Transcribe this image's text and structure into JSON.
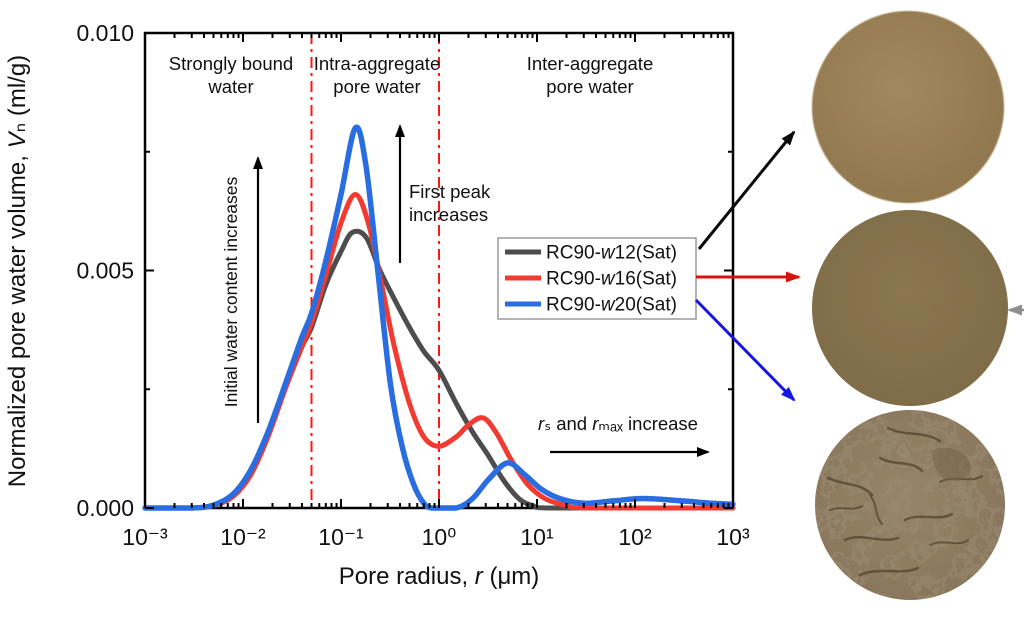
{
  "figure": {
    "background": "#ffffff"
  },
  "chart_data": {
    "type": "line",
    "title": "",
    "xlabel": "Pore radius, r (μm)",
    "ylabel": "Normalized pore water volume, Vₙ (ml/g)",
    "xlabel_parts": [
      {
        "t": "Pore radius, ",
        "i": false
      },
      {
        "t": "r",
        "i": true
      },
      {
        "t": " (μm)",
        "i": false
      }
    ],
    "ylabel_parts": [
      {
        "t": "Normalized pore water volume, ",
        "i": false
      },
      {
        "t": "V",
        "i": true
      },
      {
        "t": "ₙ",
        "i": false
      },
      {
        "t": " (ml/g)",
        "i": false
      }
    ],
    "x_scale": "log",
    "xlim": [
      0.001,
      1000
    ],
    "ylim": [
      0,
      0.01
    ],
    "x_tick_labels": [
      "10⁻³",
      "10⁻²",
      "10⁻¹",
      "10⁰",
      "10¹",
      "10²",
      "10³"
    ],
    "y_ticks": [
      0,
      0.005,
      0.01
    ],
    "y_tick_labels": [
      "0.000",
      "0.005",
      "0.010"
    ],
    "y_minor_ticks": [
      0.0025,
      0.0075
    ],
    "grid": false,
    "legend_position": "inside-right",
    "ink": "#000000",
    "boundary_color": "#ff1512",
    "region_boundaries_um": [
      0.05,
      1
    ],
    "series": [
      {
        "name": "RC90-w12(Sat)",
        "color": "#4d4d4d",
        "stroke_width": 5,
        "points": [
          [
            0.001,
            0
          ],
          [
            0.003,
            0
          ],
          [
            0.005,
            6e-05
          ],
          [
            0.008,
            0.0003
          ],
          [
            0.012,
            0.0008
          ],
          [
            0.018,
            0.0016
          ],
          [
            0.028,
            0.0026
          ],
          [
            0.04,
            0.0034
          ],
          [
            0.05,
            0.0038
          ],
          [
            0.07,
            0.0047
          ],
          [
            0.1,
            0.0054
          ],
          [
            0.13,
            0.0058
          ],
          [
            0.18,
            0.0057
          ],
          [
            0.25,
            0.005
          ],
          [
            0.35,
            0.0044
          ],
          [
            0.5,
            0.0038
          ],
          [
            0.7,
            0.0033
          ],
          [
            1,
            0.0029
          ],
          [
            1.5,
            0.0022
          ],
          [
            2.2,
            0.0016
          ],
          [
            3.2,
            0.0011
          ],
          [
            4.5,
            0.0006
          ],
          [
            6.5,
            0.0002
          ],
          [
            9,
            5e-05
          ],
          [
            13,
            0
          ],
          [
            100,
            0
          ],
          [
            1000,
            0
          ]
        ]
      },
      {
        "name": "RC90-w16(Sat)",
        "color": "#f23a30",
        "stroke_width": 5,
        "points": [
          [
            0.001,
            0
          ],
          [
            0.003,
            0
          ],
          [
            0.005,
            5e-05
          ],
          [
            0.008,
            0.00025
          ],
          [
            0.012,
            0.0007
          ],
          [
            0.018,
            0.0015
          ],
          [
            0.028,
            0.0026
          ],
          [
            0.04,
            0.0034
          ],
          [
            0.05,
            0.0039
          ],
          [
            0.07,
            0.0049
          ],
          [
            0.1,
            0.006
          ],
          [
            0.14,
            0.0066
          ],
          [
            0.19,
            0.006
          ],
          [
            0.26,
            0.0047
          ],
          [
            0.35,
            0.0034
          ],
          [
            0.5,
            0.0022
          ],
          [
            0.7,
            0.0015
          ],
          [
            1,
            0.0013
          ],
          [
            1.5,
            0.0015
          ],
          [
            2,
            0.00175
          ],
          [
            2.8,
            0.0019
          ],
          [
            3.8,
            0.0016
          ],
          [
            5.5,
            0.001
          ],
          [
            8,
            0.0005
          ],
          [
            12,
            0.0002
          ],
          [
            20,
            5e-05
          ],
          [
            35,
            0
          ],
          [
            1000,
            0
          ]
        ]
      },
      {
        "name": "RC90-w20(Sat)",
        "color": "#2a6de0",
        "stroke_width": 5.5,
        "points": [
          [
            0.001,
            0
          ],
          [
            0.003,
            0
          ],
          [
            0.005,
            6e-05
          ],
          [
            0.008,
            0.0003
          ],
          [
            0.012,
            0.0008
          ],
          [
            0.018,
            0.0016
          ],
          [
            0.028,
            0.0027
          ],
          [
            0.04,
            0.0036
          ],
          [
            0.05,
            0.0041
          ],
          [
            0.07,
            0.0052
          ],
          [
            0.1,
            0.0066
          ],
          [
            0.14,
            0.008
          ],
          [
            0.18,
            0.0072
          ],
          [
            0.24,
            0.0049
          ],
          [
            0.32,
            0.0026
          ],
          [
            0.42,
            0.0013
          ],
          [
            0.55,
            0.0005
          ],
          [
            0.7,
            0.0001
          ],
          [
            0.85,
            0
          ],
          [
            1.5,
            0
          ],
          [
            2.2,
            0.0002
          ],
          [
            3.2,
            0.0006
          ],
          [
            5,
            0.00095
          ],
          [
            7.5,
            0.0007
          ],
          [
            11,
            0.0004
          ],
          [
            17,
            0.0002
          ],
          [
            30,
            0.0001
          ],
          [
            60,
            0.00015
          ],
          [
            120,
            0.0002
          ],
          [
            300,
            0.00015
          ],
          [
            600,
            0.0001
          ],
          [
            1000,
            8e-05
          ]
        ]
      }
    ],
    "annotations": {
      "strongly_bound": {
        "line1": "Strongly bound",
        "line2": "water"
      },
      "intra_aggregate": {
        "line1": "Intra-aggregate",
        "line2": "pore water"
      },
      "inter_aggregate": {
        "line1": "Inter-aggregate",
        "line2": "pore water"
      },
      "initial_water": "Initial water content increases",
      "first_peak": {
        "line1": "First peak",
        "line2": "increases"
      },
      "rs_rmax": "rₛ and rₘₐₓ increase",
      "rs_rmax_parts": [
        {
          "t": "r",
          "i": true
        },
        {
          "t": "ₛ",
          "i": false
        },
        {
          "t": " and ",
          "i": false
        },
        {
          "t": "r",
          "i": true
        },
        {
          "t": "ₘₐₓ",
          "i": false
        },
        {
          "t": " increase",
          "i": false
        }
      ]
    }
  },
  "legend": {
    "entries": [
      {
        "text": "RC90-w12(Sat)",
        "parts": [
          {
            "t": "RC90-",
            "i": false
          },
          {
            "t": "w",
            "i": true
          },
          {
            "t": "12(Sat)",
            "i": false
          }
        ],
        "color": "#4d4d4d"
      },
      {
        "text": "RC90-w16(Sat)",
        "parts": [
          {
            "t": "RC90-",
            "i": false
          },
          {
            "t": "w",
            "i": true
          },
          {
            "t": "16(Sat)",
            "i": false
          }
        ],
        "color": "#f23a30"
      },
      {
        "text": "RC90-w20(Sat)",
        "parts": [
          {
            "t": "RC90-",
            "i": false
          },
          {
            "t": "w",
            "i": true
          },
          {
            "t": "20(Sat)",
            "i": false
          }
        ],
        "color": "#2a6de0"
      }
    ]
  },
  "connectors": {
    "to_w12": {
      "color": "#0a0a0a"
    },
    "to_w16": {
      "color": "#d51410"
    },
    "to_w20": {
      "color": "#1616e0"
    },
    "side_arrow": {
      "color": "#8f8f8f"
    }
  },
  "photos": [
    {
      "name": "sample-photo-w12",
      "appearance": "smooth tan soil disc",
      "center_color": "#a8895e",
      "edge_color": "#8e7347"
    },
    {
      "name": "sample-photo-w16",
      "appearance": "smooth brown soil disc",
      "center_color": "#8b764f",
      "edge_color": "#7c6943"
    },
    {
      "name": "sample-photo-w20",
      "appearance": "rough cracked aggregated soil disc",
      "center_color": "#97846a",
      "edge_color": "#837055",
      "crack_color": "#55452e"
    }
  ]
}
